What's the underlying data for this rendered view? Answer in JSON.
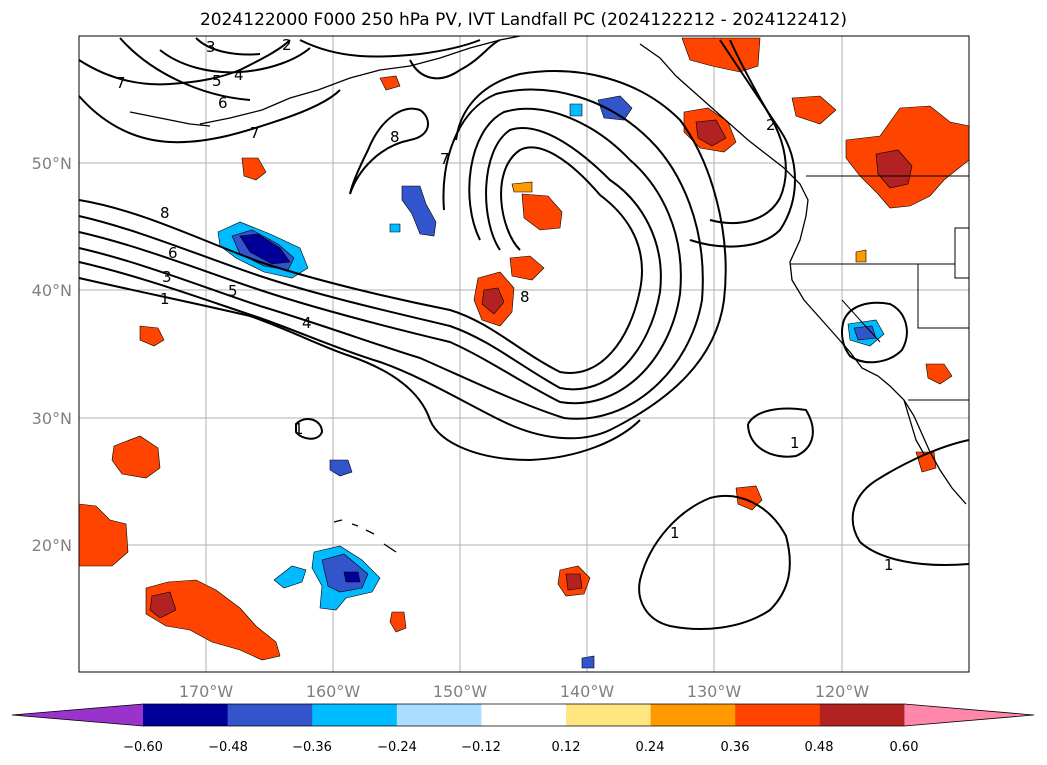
{
  "title": "2024122000 F000 250 hPa PV, IVT Landfall PC (2024122212 - 2024122412)",
  "lat_ticks": [
    "50°N",
    "40°N",
    "30°N",
    "20°N"
  ],
  "lon_ticks": [
    "170°W",
    "160°W",
    "150°W",
    "140°W",
    "130°W",
    "120°W"
  ],
  "colorbar": {
    "labels": [
      "−0.60",
      "−0.48",
      "−0.36",
      "−0.24",
      "−0.12",
      "0.12",
      "0.24",
      "0.36",
      "0.48",
      "0.60"
    ],
    "colors": [
      "#9933cc",
      "#000099",
      "#3355cc",
      "#00bbff",
      "#aaddff",
      "#ffffff",
      "#ffe680",
      "#ff9900",
      "#ff4400",
      "#b22222",
      "#ff88aa"
    ]
  },
  "contour_labels": [
    "1",
    "2",
    "3",
    "4",
    "5",
    "6",
    "7",
    "8"
  ],
  "extent": {
    "lon": [
      -180,
      -110
    ],
    "lat": [
      10,
      60
    ]
  }
}
